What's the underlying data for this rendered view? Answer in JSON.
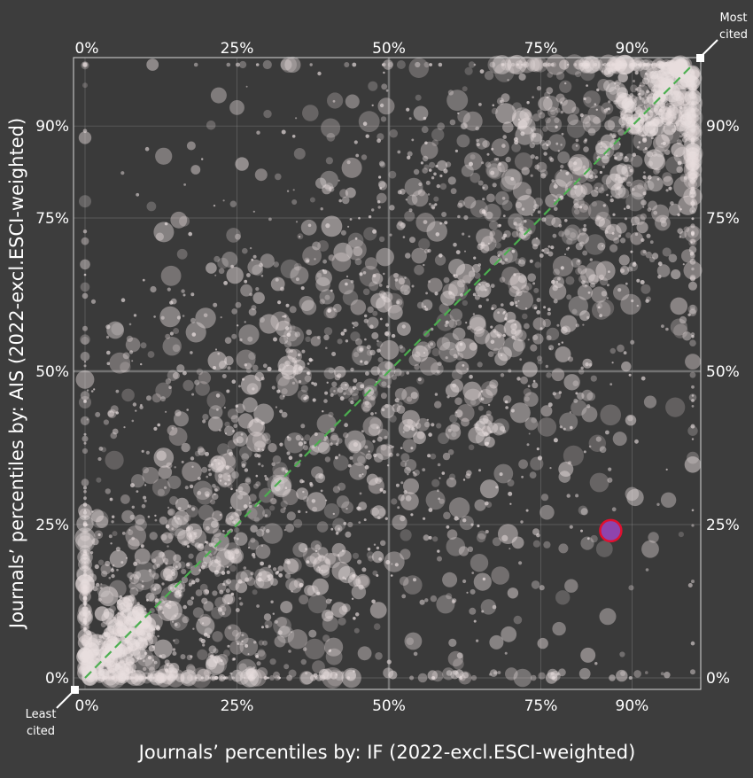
{
  "chart_data": {
    "type": "scatter",
    "xlabel": "Journals’ percentiles by: IF (2022-excl.ESCI-weighted)",
    "ylabel": "Journals’ percentiles by: AIS (2022-excl.ESCI-weighted)",
    "xlim": [
      0,
      100
    ],
    "ylim": [
      0,
      100
    ],
    "ticks": [
      "0%",
      "25%",
      "50%",
      "75%",
      "90%"
    ],
    "tick_values": [
      0,
      25,
      50,
      75,
      90
    ],
    "corner_labels": {
      "top_right_line1": "Most",
      "top_right_line2": "cited",
      "bottom_left_line1": "Least",
      "bottom_left_line2": "cited"
    },
    "diagonal": {
      "from": [
        0,
        0
      ],
      "to": [
        100,
        100
      ],
      "style": "dashed",
      "color": "#4caf50"
    },
    "highlight_point": {
      "x": 86.5,
      "y": 24,
      "color": "#8e44ad",
      "stroke": "#e0102f"
    },
    "cloud": {
      "n": 3200,
      "spread": 17,
      "point_color": "#e8dede",
      "notable_points": [
        {
          "x": 30,
          "y": 68
        },
        {
          "x": 28,
          "y": 67
        },
        {
          "x": 22,
          "y": 95
        },
        {
          "x": 25,
          "y": 93
        },
        {
          "x": 44,
          "y": 94
        },
        {
          "x": 96,
          "y": 29
        },
        {
          "x": 93,
          "y": 45
        },
        {
          "x": 88,
          "y": 39
        },
        {
          "x": 90,
          "y": 30
        },
        {
          "x": 76,
          "y": 27
        },
        {
          "x": 83,
          "y": 43
        },
        {
          "x": 86,
          "y": 10
        },
        {
          "x": 80,
          "y": 15
        },
        {
          "x": 78,
          "y": 8
        },
        {
          "x": 93,
          "y": 21
        },
        {
          "x": 46,
          "y": 4
        },
        {
          "x": 54,
          "y": 6
        },
        {
          "x": 60,
          "y": 16
        }
      ]
    }
  }
}
